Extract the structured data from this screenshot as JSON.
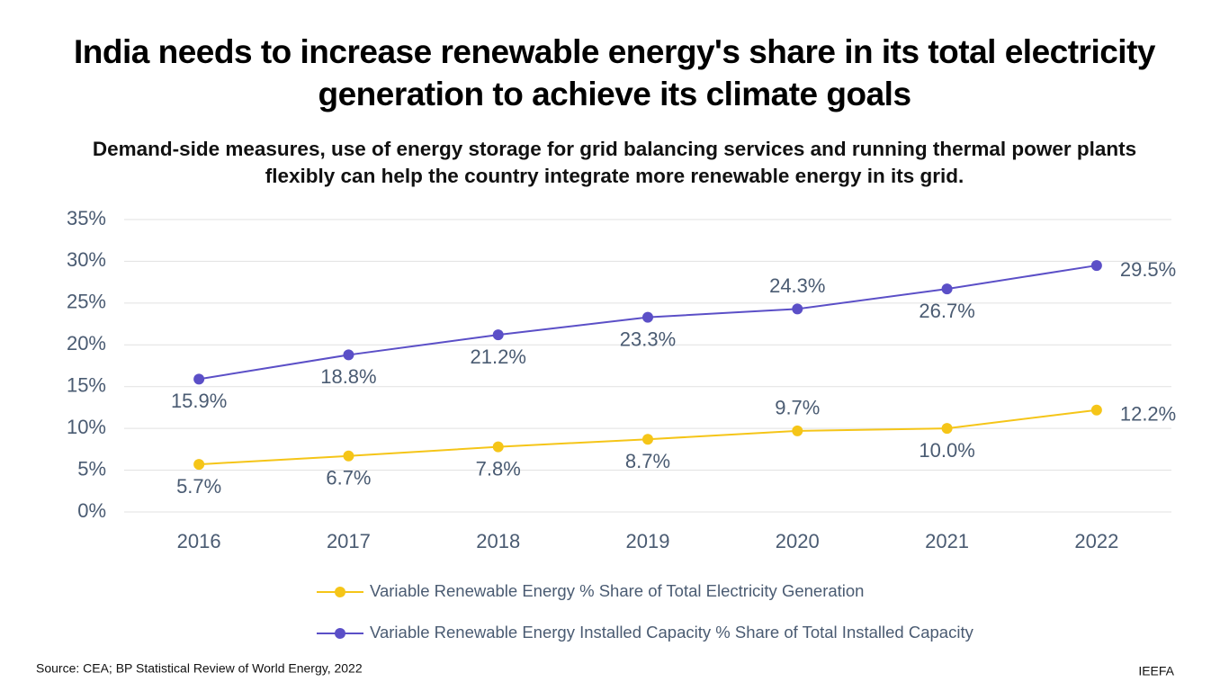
{
  "chart_data": {
    "type": "line",
    "title": "India needs to increase renewable energy's share in its total electricity generation to achieve its climate goals",
    "subtitle": "Demand-side measures, use of energy storage for grid balancing services and running thermal power plants flexibly can help the country integrate more renewable energy in its grid.",
    "categories": [
      "2016",
      "2017",
      "2018",
      "2019",
      "2020",
      "2021",
      "2022"
    ],
    "series": [
      {
        "name": "Variable Renewable Energy % Share of Total Electricity Generation",
        "color": "#f5c518",
        "values": [
          5.7,
          6.7,
          7.8,
          8.7,
          9.7,
          10.0,
          12.2
        ],
        "value_labels": [
          "5.7%",
          "6.7%",
          "7.8%",
          "8.7%",
          "9.7%",
          "10.0%",
          "12.2%"
        ]
      },
      {
        "name": "Variable Renewable Energy Installed Capacity % Share of Total Installed Capacity",
        "color": "#5b4fc7",
        "values": [
          15.9,
          18.8,
          21.2,
          23.3,
          24.3,
          26.7,
          29.5
        ],
        "value_labels": [
          "15.9%",
          "18.8%",
          "21.2%",
          "23.3%",
          "24.3%",
          "26.7%",
          "29.5%"
        ]
      }
    ],
    "ylim": [
      0,
      35
    ],
    "yticks": [
      {
        "value": 0,
        "label": "0%"
      },
      {
        "value": 5,
        "label": "5%"
      },
      {
        "value": 10,
        "label": "10%"
      },
      {
        "value": 15,
        "label": "15%"
      },
      {
        "value": 20,
        "label": "20%"
      },
      {
        "value": 25,
        "label": "25%"
      },
      {
        "value": 30,
        "label": "30%"
      },
      {
        "value": 35,
        "label": "35%"
      }
    ],
    "grid": true,
    "legend": "bottom",
    "source": "Source: CEA; BP Statistical Review of World Energy, 2022",
    "credit": "IEEFA"
  }
}
